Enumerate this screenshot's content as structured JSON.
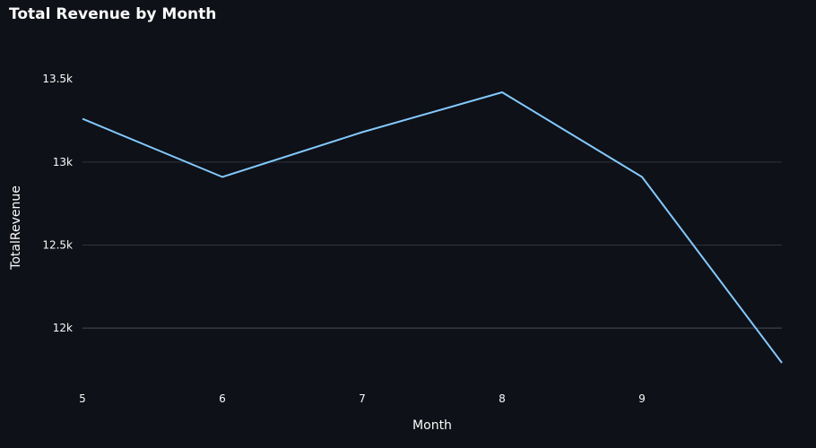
{
  "chart_data": {
    "type": "line",
    "title": "Total Revenue by Month",
    "xlabel": "Month",
    "ylabel": "TotalRevenue",
    "x": [
      5,
      6,
      7,
      8,
      9,
      10
    ],
    "x_ticks": [
      "5",
      "6",
      "7",
      "8",
      "9"
    ],
    "y_ticks": [
      {
        "value": 12000,
        "label": "12k"
      },
      {
        "value": 12500,
        "label": "12.5k"
      },
      {
        "value": 13000,
        "label": "13k"
      },
      {
        "value": 13500,
        "label": "13.5k"
      }
    ],
    "series": [
      {
        "values": [
          13260,
          12910,
          13180,
          13420,
          12910,
          11790
        ],
        "color": "#83c9ff"
      }
    ],
    "xlim": [
      5,
      10
    ],
    "ylim": [
      11790,
      13420
    ],
    "grid": true,
    "colors": {
      "background": "#0e1117",
      "grid": "#31333f",
      "text": "#fafafa",
      "line": "#83c9ff"
    }
  }
}
